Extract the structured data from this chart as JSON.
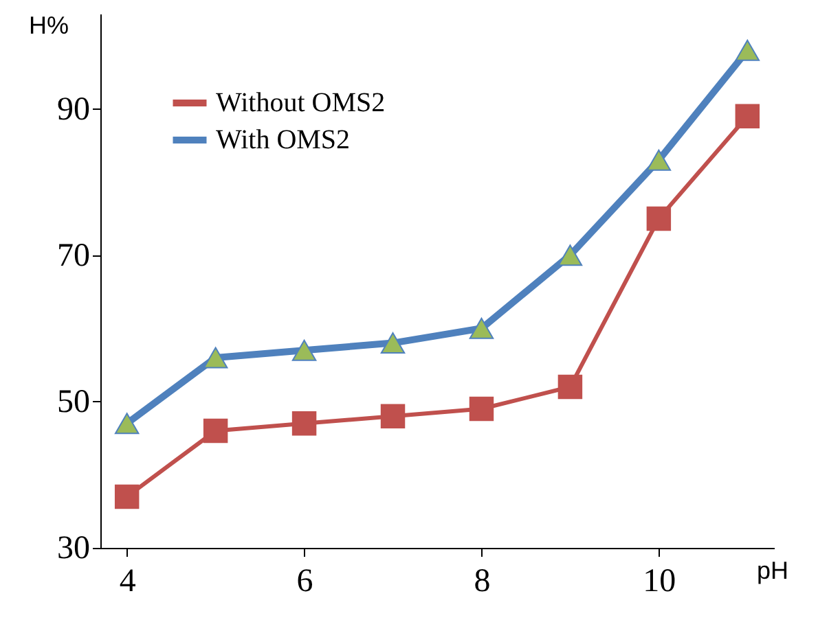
{
  "chart_data": {
    "type": "line",
    "xlabel": "pH",
    "ylabel": "H%",
    "x": [
      4,
      5,
      6,
      7,
      8,
      9,
      10,
      11
    ],
    "series": [
      {
        "name": "Without OMS2",
        "color": "#c0504d",
        "marker": "square",
        "values": [
          37,
          46,
          47,
          48,
          49,
          52,
          75,
          89
        ]
      },
      {
        "name": "With OMS2",
        "color": "#4f81bd",
        "marker": "triangle",
        "colors": [
          "#9bbb59",
          "#9bbb59",
          "#9bbb59",
          "#9bbb59",
          "#9bbb59",
          "#9bbb59",
          "#9bbb59",
          "#9bbb59"
        ],
        "values": [
          47,
          56,
          57,
          58,
          60,
          70,
          83,
          98
        ]
      }
    ],
    "xlim": [
      3.7,
      11.3
    ],
    "xticks": [
      4,
      6,
      8,
      10
    ],
    "ylim": [
      30,
      103
    ],
    "yticks": [
      30,
      50,
      70,
      90
    ],
    "grid": false,
    "legend": "top left"
  }
}
